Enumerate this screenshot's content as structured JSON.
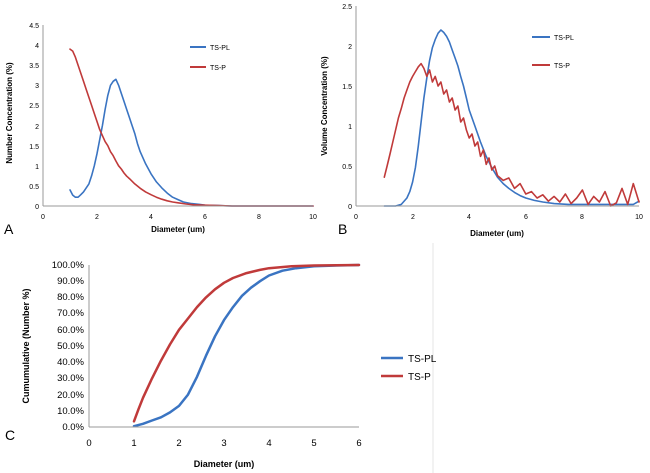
{
  "colors": {
    "ts_pl": "#3a74c2",
    "ts_p": "#c03a3a",
    "axis": "#9a9a9a"
  },
  "chart_data": [
    {
      "panel": "A",
      "type": "line",
      "xlabel": "Diameter (um)",
      "ylabel": "Number Concentration (%)",
      "xlim": [
        0,
        10
      ],
      "ylim": [
        0,
        4.5
      ],
      "x_ticks": [
        "0",
        "2",
        "4",
        "6",
        "8",
        "10"
      ],
      "y_ticks": [
        "0",
        "0.5",
        "1",
        "1.5",
        "2",
        "2.5",
        "3",
        "3.5",
        "4",
        "4.5"
      ],
      "grid": false,
      "legend": "right",
      "series": [
        {
          "name": "TS-PL",
          "x": [
            1.0,
            1.1,
            1.2,
            1.3,
            1.4,
            1.5,
            1.6,
            1.7,
            1.8,
            1.9,
            2.0,
            2.1,
            2.2,
            2.3,
            2.4,
            2.5,
            2.6,
            2.7,
            2.8,
            2.9,
            3.0,
            3.1,
            3.2,
            3.3,
            3.4,
            3.5,
            3.6,
            3.8,
            4.0,
            4.2,
            4.4,
            4.6,
            4.8,
            5.0,
            5.2,
            5.5,
            5.8,
            6.0,
            6.5,
            7.0,
            8.0,
            9.0,
            10.0
          ],
          "y": [
            0.4,
            0.27,
            0.22,
            0.22,
            0.28,
            0.35,
            0.45,
            0.55,
            0.75,
            1.0,
            1.3,
            1.65,
            2.0,
            2.4,
            2.75,
            3.0,
            3.1,
            3.15,
            3.0,
            2.8,
            2.6,
            2.4,
            2.2,
            2.0,
            1.8,
            1.55,
            1.35,
            1.05,
            0.8,
            0.6,
            0.45,
            0.32,
            0.22,
            0.16,
            0.1,
            0.06,
            0.04,
            0.02,
            0.01,
            0.0,
            0.0,
            0.0,
            0.0
          ]
        },
        {
          "name": "TS-P",
          "x": [
            1.0,
            1.1,
            1.2,
            1.3,
            1.4,
            1.5,
            1.6,
            1.7,
            1.8,
            1.9,
            2.0,
            2.1,
            2.2,
            2.3,
            2.4,
            2.5,
            2.6,
            2.7,
            2.8,
            2.9,
            3.0,
            3.1,
            3.2,
            3.4,
            3.6,
            3.8,
            4.0,
            4.2,
            4.4,
            4.6,
            4.8,
            5.0,
            5.3,
            5.6,
            6.0,
            6.5,
            7.0,
            8.0,
            9.0,
            10.0
          ],
          "y": [
            3.9,
            3.85,
            3.7,
            3.5,
            3.3,
            3.1,
            2.9,
            2.7,
            2.5,
            2.3,
            2.1,
            1.9,
            1.75,
            1.6,
            1.5,
            1.35,
            1.25,
            1.12,
            1.0,
            0.92,
            0.82,
            0.74,
            0.68,
            0.55,
            0.44,
            0.35,
            0.28,
            0.22,
            0.17,
            0.13,
            0.1,
            0.08,
            0.05,
            0.03,
            0.02,
            0.01,
            0.0,
            0.0,
            0.0,
            0.0
          ]
        }
      ]
    },
    {
      "panel": "B",
      "type": "line",
      "xlabel": "Diameter (um)",
      "ylabel": "Volume Concentration (%)",
      "xlim": [
        0,
        10
      ],
      "ylim": [
        0,
        2.5
      ],
      "x_ticks": [
        "0",
        "2",
        "4",
        "6",
        "8",
        "10"
      ],
      "y_ticks": [
        "0",
        "0.5",
        "1",
        "1.5",
        "2",
        "2.5"
      ],
      "grid": false,
      "legend": "right",
      "series": [
        {
          "name": "TS-PL",
          "x": [
            1.0,
            1.2,
            1.4,
            1.6,
            1.8,
            1.9,
            2.0,
            2.1,
            2.2,
            2.3,
            2.4,
            2.5,
            2.6,
            2.7,
            2.8,
            2.9,
            3.0,
            3.1,
            3.2,
            3.3,
            3.4,
            3.5,
            3.6,
            3.7,
            3.8,
            3.9,
            4.0,
            4.2,
            4.4,
            4.6,
            4.8,
            5.0,
            5.2,
            5.4,
            5.6,
            5.8,
            6.0,
            6.3,
            6.6,
            7.0,
            7.5,
            8.0,
            8.5,
            9.0,
            9.5,
            9.8,
            10.0
          ],
          "y": [
            0.0,
            0.0,
            0.0,
            0.02,
            0.1,
            0.18,
            0.3,
            0.48,
            0.75,
            1.05,
            1.35,
            1.6,
            1.82,
            1.98,
            2.08,
            2.16,
            2.2,
            2.17,
            2.12,
            2.05,
            1.95,
            1.85,
            1.75,
            1.62,
            1.5,
            1.35,
            1.2,
            1.0,
            0.8,
            0.62,
            0.48,
            0.36,
            0.28,
            0.22,
            0.17,
            0.13,
            0.1,
            0.07,
            0.05,
            0.03,
            0.02,
            0.02,
            0.02,
            0.02,
            0.02,
            0.02,
            0.06
          ]
        },
        {
          "name": "TS-P",
          "x": [
            1.0,
            1.1,
            1.2,
            1.3,
            1.4,
            1.5,
            1.6,
            1.7,
            1.8,
            1.9,
            2.0,
            2.1,
            2.2,
            2.3,
            2.4,
            2.5,
            2.6,
            2.7,
            2.8,
            2.9,
            3.0,
            3.1,
            3.2,
            3.3,
            3.4,
            3.5,
            3.6,
            3.7,
            3.8,
            3.9,
            4.0,
            4.1,
            4.2,
            4.3,
            4.4,
            4.5,
            4.6,
            4.7,
            4.8,
            4.9,
            5.0,
            5.2,
            5.4,
            5.6,
            5.8,
            6.0,
            6.2,
            6.4,
            6.6,
            6.8,
            7.0,
            7.2,
            7.4,
            7.6,
            7.8,
            8.0,
            8.2,
            8.4,
            8.6,
            8.8,
            9.0,
            9.2,
            9.4,
            9.6,
            9.8,
            10.0
          ],
          "y": [
            0.36,
            0.5,
            0.65,
            0.8,
            0.95,
            1.1,
            1.22,
            1.35,
            1.45,
            1.55,
            1.62,
            1.68,
            1.74,
            1.78,
            1.72,
            1.62,
            1.7,
            1.55,
            1.62,
            1.5,
            1.55,
            1.4,
            1.45,
            1.3,
            1.35,
            1.2,
            1.25,
            1.05,
            1.1,
            0.95,
            0.85,
            0.9,
            0.75,
            0.8,
            0.62,
            0.7,
            0.52,
            0.6,
            0.45,
            0.5,
            0.38,
            0.32,
            0.35,
            0.22,
            0.28,
            0.15,
            0.18,
            0.1,
            0.14,
            0.06,
            0.12,
            0.05,
            0.15,
            0.03,
            0.1,
            0.2,
            0.02,
            0.12,
            0.05,
            0.18,
            0.0,
            0.04,
            0.22,
            0.02,
            0.28,
            0.05
          ]
        }
      ]
    },
    {
      "panel": "C",
      "type": "line",
      "xlabel": "Diameter (um)",
      "ylabel": "Cumumulative (Number %)",
      "xlim": [
        0,
        6
      ],
      "ylim": [
        0,
        100
      ],
      "x_ticks": [
        "0",
        "1",
        "2",
        "3",
        "4",
        "5",
        "6"
      ],
      "y_ticks": [
        "0.0%",
        "10.0%",
        "20.0%",
        "30.0%",
        "40.0%",
        "50.0%",
        "60.0%",
        "70.0%",
        "80.0%",
        "90.0%",
        "100.0%"
      ],
      "grid": false,
      "legend": "right",
      "series": [
        {
          "name": "TS-PL",
          "x": [
            1.0,
            1.2,
            1.4,
            1.6,
            1.8,
            2.0,
            2.2,
            2.4,
            2.6,
            2.8,
            3.0,
            3.2,
            3.4,
            3.6,
            3.8,
            4.0,
            4.3,
            4.6,
            5.0,
            5.5,
            6.0
          ],
          "y": [
            0.5,
            2.0,
            4.0,
            6.0,
            9.0,
            13.0,
            20.0,
            31.0,
            44.0,
            56.0,
            66.0,
            74.0,
            81.0,
            86.0,
            90.0,
            93.5,
            96.5,
            98.0,
            99.2,
            99.7,
            100.0
          ]
        },
        {
          "name": "TS-P",
          "x": [
            1.0,
            1.1,
            1.2,
            1.4,
            1.6,
            1.8,
            2.0,
            2.2,
            2.4,
            2.6,
            2.8,
            3.0,
            3.2,
            3.5,
            3.8,
            4.0,
            4.5,
            5.0,
            5.5,
            6.0
          ],
          "y": [
            3.5,
            11.0,
            18.0,
            30.0,
            41.0,
            51.0,
            60.0,
            67.0,
            74.0,
            80.0,
            85.0,
            89.0,
            92.0,
            95.0,
            97.0,
            98.0,
            99.2,
            99.7,
            99.9,
            100.0
          ]
        }
      ]
    }
  ]
}
